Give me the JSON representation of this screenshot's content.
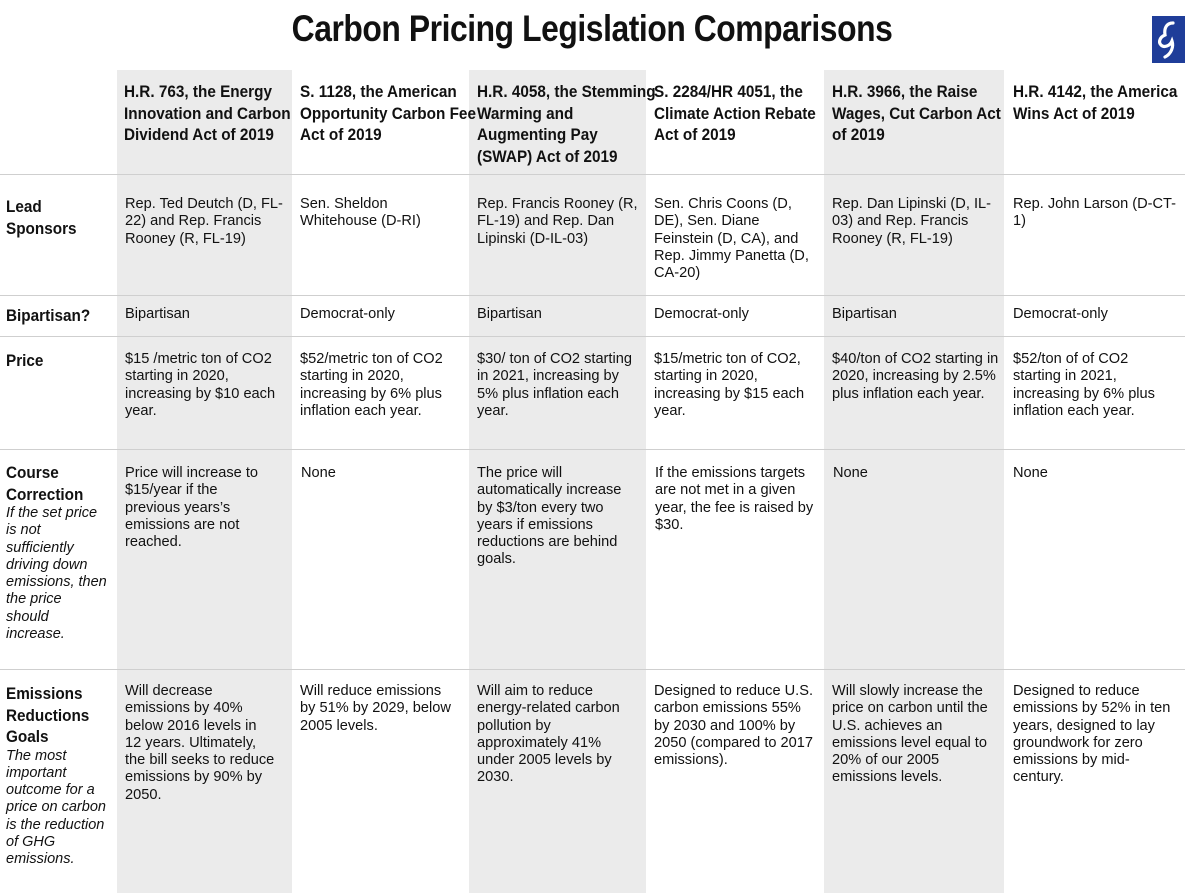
{
  "title": "Carbon Pricing Legislation Comparisons",
  "logo_icon": "blue-square-logo-icon",
  "colors": {
    "shade": "#ebebeb",
    "logo": "#1f3d99",
    "rule": "#cfcfcf"
  },
  "columns": [
    "H.R. 763, the Energy Innovation and Carbon Dividend Act of 2019",
    "S. 1128, the American Opportunity Carbon Fee Act of 2019",
    "H.R. 4058, the Stemming Warming and Augmenting Pay (SWAP) Act of 2019",
    "S. 2284/HR 4051, the Climate Action Rebate Act of 2019",
    "H.R. 3966, the Raise Wages, Cut Carbon Act of 2019",
    "H.R. 4142, the America Wins Act of 2019"
  ],
  "rows": [
    {
      "label": "Lead Sponsors",
      "note": "",
      "cells": [
        "Rep. Ted Deutch (D, FL-22) and Rep. Francis Rooney (R, FL-19)",
        "Sen. Sheldon Whitehouse (D-RI)",
        "Rep. Francis Rooney (R, FL-19) and Rep. Dan Lipinski (D-IL-03)",
        "Sen. Chris Coons (D, DE), Sen. Diane Feinstein (D, CA), and Rep. Jimmy Panetta (D, CA-20)",
        "Rep. Dan Lipinski (D, IL-03) and Rep. Francis Rooney (R, FL-19)",
        "Rep. John Larson (D-CT-1)"
      ]
    },
    {
      "label": "Bipartisan?",
      "note": "",
      "cells": [
        "Bipartisan",
        "Democrat-only",
        "Bipartisan",
        "Democrat-only",
        "Bipartisan",
        "Democrat-only"
      ]
    },
    {
      "label": "Price",
      "note": "",
      "cells": [
        "$15 /metric ton of CO2 starting in 2020, increasing by $10 each year.",
        "$52/metric ton of CO2 starting in 2020, increasing by 6% plus inflation each year.",
        "$30/ ton of CO2 starting in 2021, increasing by 5% plus inflation each year.",
        "$15/metric ton of CO2, starting in 2020, increasing by $15 each year.",
        "$40/ton of CO2 starting in 2020, increasing by 2.5% plus inflation each year.",
        "$52/ton of of CO2 starting in 2021, increasing by 6% plus inflation each year."
      ]
    },
    {
      "label": "Course Correction",
      "note": "If the set price is not sufficiently driving down emissions, then the price should increase.",
      "cells": [
        "Price will increase to $15/year if the previous years’s emissions are not reached.",
        "None",
        "The price will automatically increase by $3/ton every two years if emissions reductions are behind goals.",
        "If the emissions targets are not met in a given year, the fee is raised by $30.",
        "None",
        "None"
      ]
    },
    {
      "label": "Emissions Reductions Goals",
      "note": "The most important outcome for a price on carbon is the reduction of GHG emissions.",
      "cells": [
        "Will decrease emissions by 40% below 2016 levels in 12 years. Ultimately, the bill seeks to reduce emissions by 90% by 2050.",
        "Will reduce emissions by 51% by 2029, below 2005 levels.",
        "Will aim to reduce energy-related carbon pollution by approximately 41% under 2005 levels by 2030.",
        "Designed to reduce U.S. carbon emissions 55% by 2030 and 100% by 2050 (compared to 2017 emissions).",
        "Will slowly increase the price on carbon until the U.S. achieves an emissions level equal to 20% of our 2005 emissions levels.",
        "Designed to reduce emissions by 52% in ten years, designed to lay groundwork for zero emissions by mid-century."
      ]
    }
  ]
}
